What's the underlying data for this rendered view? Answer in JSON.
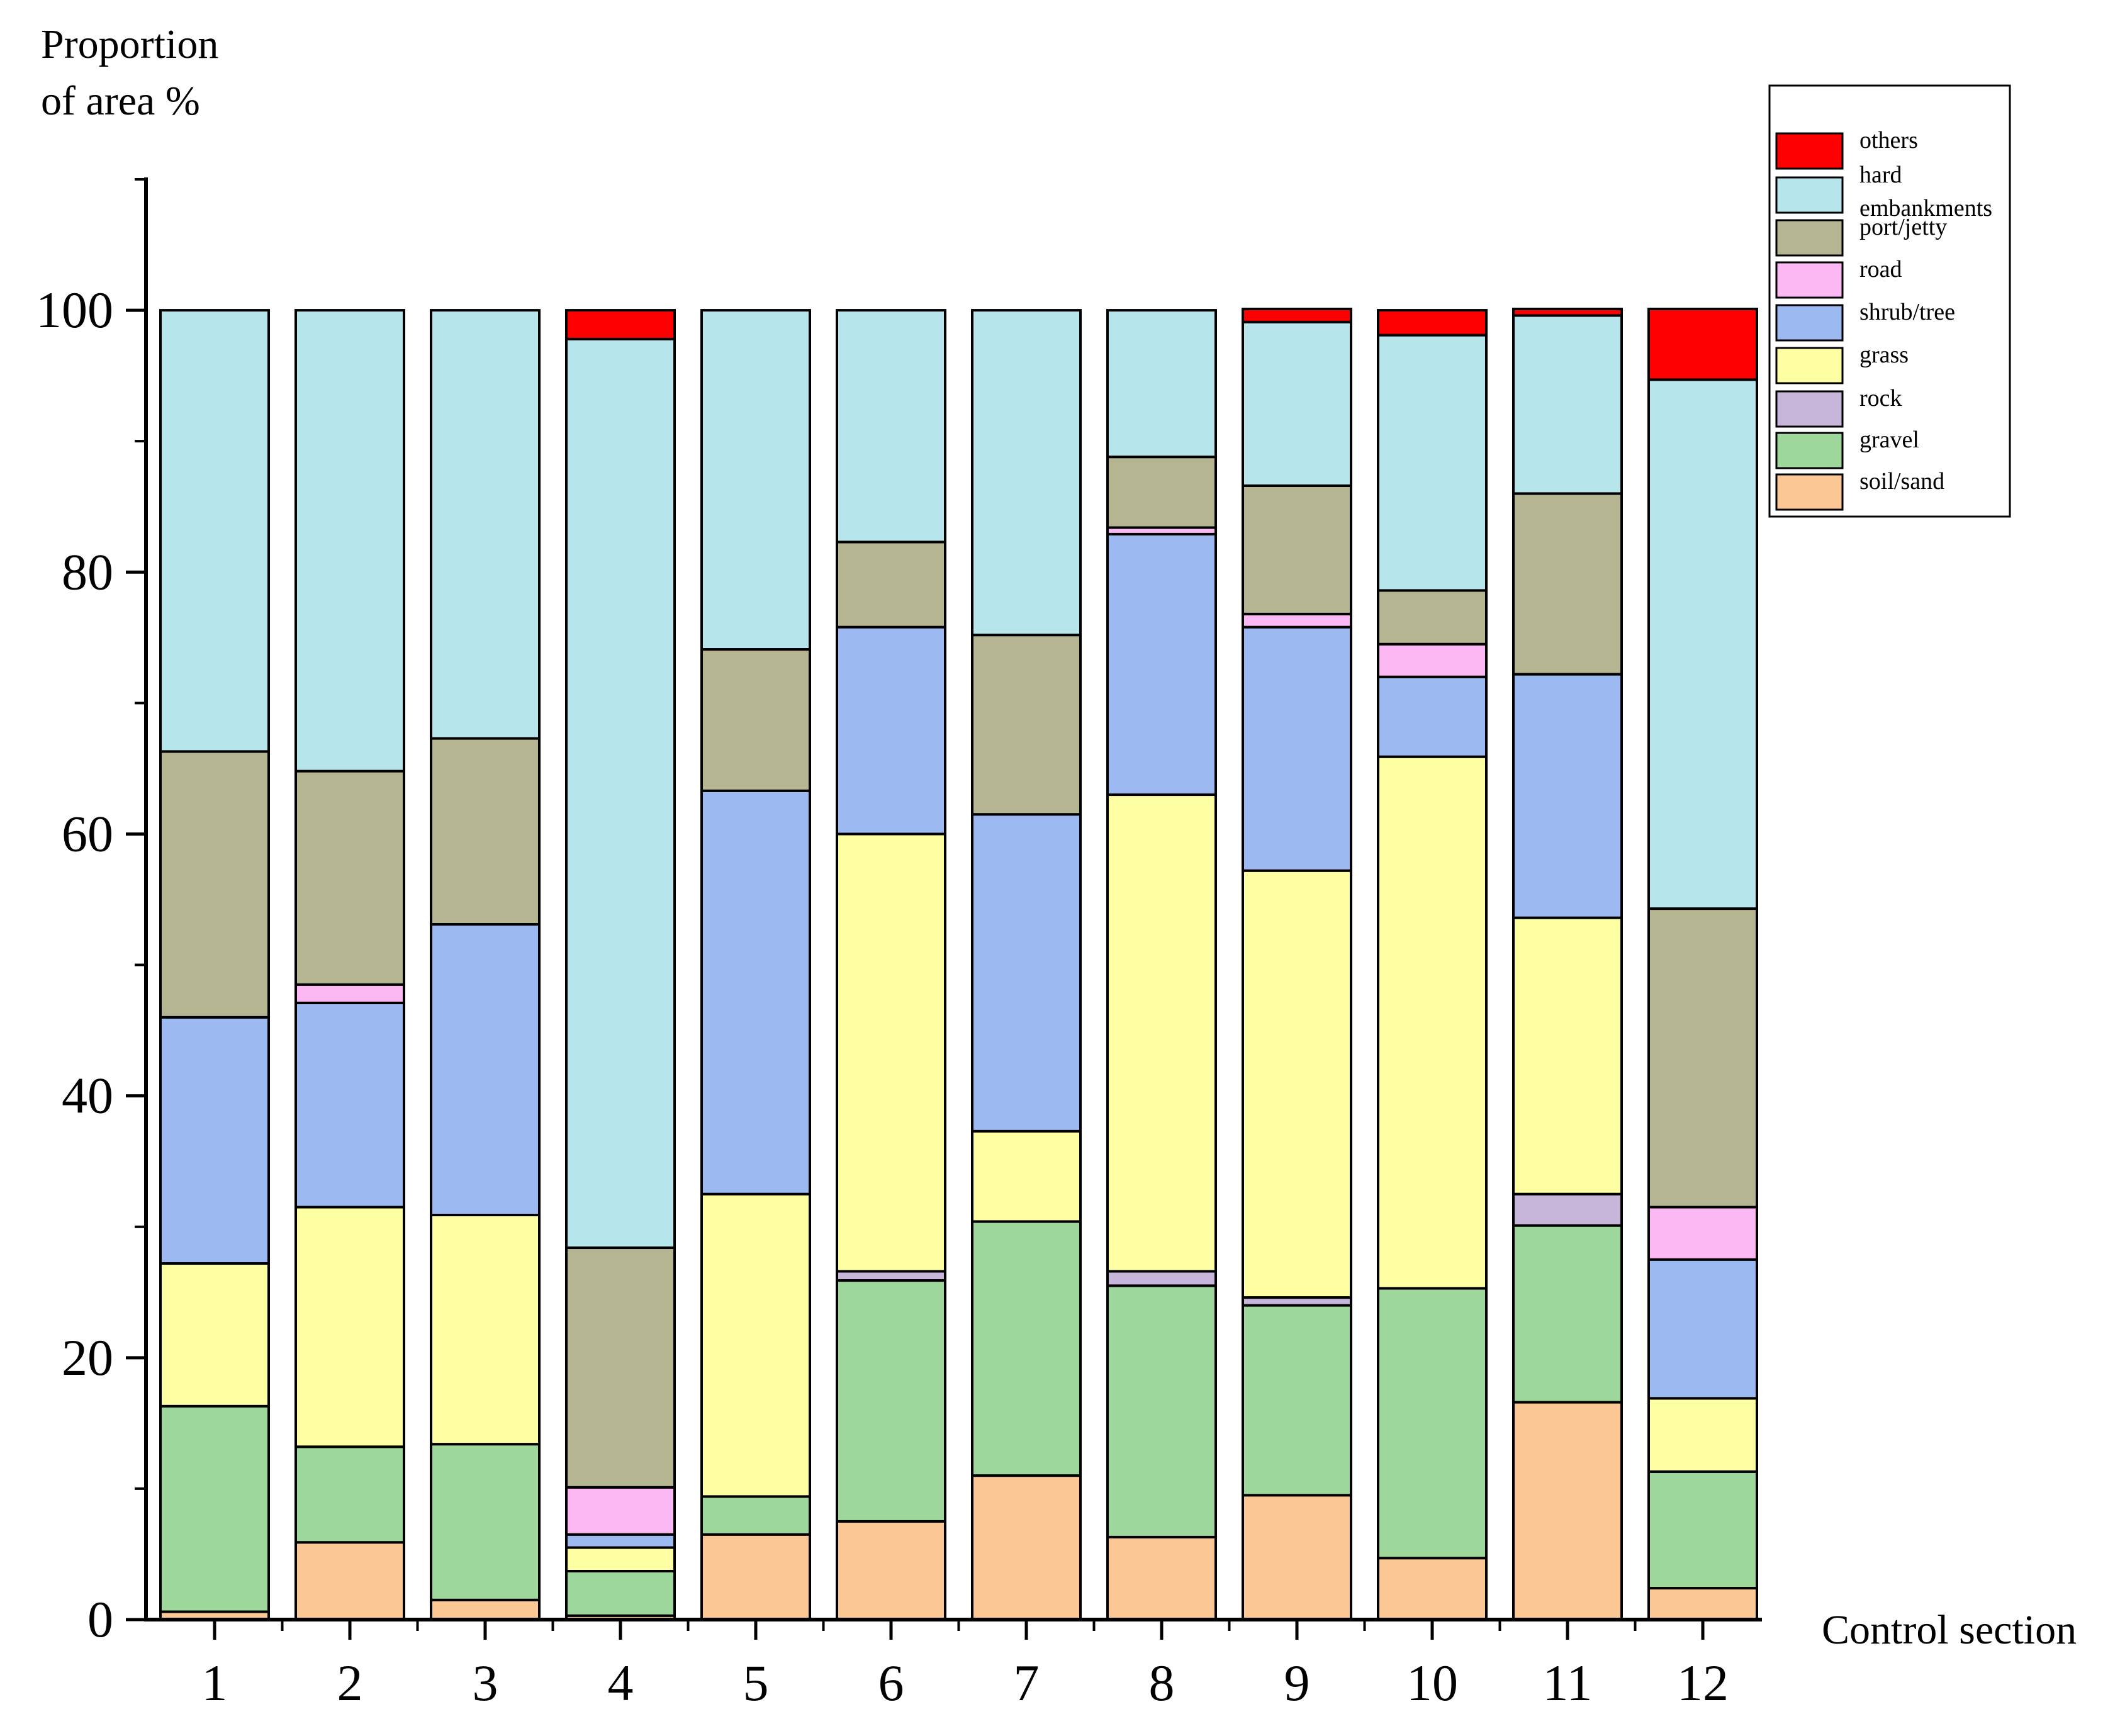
{
  "chart_data": {
    "type": "bar",
    "stacked": true,
    "title": "",
    "ylabel_lines": [
      "Proportion",
      "of area %"
    ],
    "xlabel": "Control section",
    "categories": [
      "1",
      "2",
      "3",
      "4",
      "5",
      "6",
      "7",
      "8",
      "9",
      "10",
      "11",
      "12"
    ],
    "ylim": [
      0,
      110
    ],
    "yticks": [
      0,
      20,
      40,
      60,
      80,
      100
    ],
    "ytick_labels": [
      "0",
      "20",
      "40",
      "60",
      "80",
      "100"
    ],
    "grid": false,
    "legend_position": "top-right",
    "series": [
      {
        "name": "soil/sand",
        "color": "#FAC795",
        "values": [
          0.6,
          5.9,
          1.5,
          0.3,
          6.5,
          7.5,
          11.0,
          6.3,
          9.5,
          4.7,
          16.6,
          2.4
        ]
      },
      {
        "name": "gravel",
        "color": "#9DD79B",
        "values": [
          15.7,
          7.3,
          11.9,
          3.4,
          2.9,
          18.4,
          19.4,
          19.2,
          14.5,
          20.6,
          13.5,
          8.9
        ]
      },
      {
        "name": "rock",
        "color": "#C7B5DA",
        "values": [
          0.0,
          0.0,
          0.0,
          0.0,
          0.0,
          0.7,
          0.0,
          1.1,
          0.6,
          0.0,
          2.4,
          0.0
        ]
      },
      {
        "name": "grass",
        "color": "#FEFEA3",
        "values": [
          10.9,
          18.3,
          17.5,
          1.8,
          23.1,
          33.4,
          6.9,
          36.4,
          32.6,
          40.6,
          21.1,
          5.6
        ]
      },
      {
        "name": "shrub/tree",
        "color": "#9DB9F2",
        "values": [
          18.8,
          15.6,
          22.2,
          1.0,
          30.8,
          15.8,
          24.2,
          19.9,
          18.6,
          6.1,
          18.6,
          10.6
        ]
      },
      {
        "name": "road",
        "color": "#FCB8F3",
        "values": [
          0.0,
          1.4,
          0.0,
          3.6,
          0.0,
          0.0,
          0.0,
          0.5,
          1.0,
          2.5,
          0.0,
          4.0
        ]
      },
      {
        "name": "port/jetty",
        "color": "#B5B592",
        "values": [
          20.3,
          16.3,
          14.2,
          18.3,
          10.8,
          6.5,
          13.7,
          5.4,
          9.8,
          4.1,
          13.8,
          22.8
        ]
      },
      {
        "name": "hard embankments",
        "color": "#B6E5EB",
        "values": [
          33.7,
          35.2,
          32.7,
          69.4,
          25.9,
          17.7,
          24.8,
          11.2,
          12.5,
          19.5,
          13.6,
          40.4
        ]
      },
      {
        "name": "others",
        "color": "#FF0000",
        "values": [
          0.0,
          0.0,
          0.0,
          2.2,
          0.0,
          0.0,
          0.0,
          0.0,
          1.0,
          1.9,
          0.5,
          5.4
        ]
      }
    ],
    "legend_entries": [
      {
        "series": "others",
        "lines": [
          "others"
        ]
      },
      {
        "series": "hard embankments",
        "lines": [
          "hard",
          "embankments"
        ]
      },
      {
        "series": "port/jetty",
        "lines": [
          "port/jetty"
        ]
      },
      {
        "series": "road",
        "lines": [
          "road"
        ]
      },
      {
        "series": "shrub/tree",
        "lines": [
          "shrub/tree"
        ]
      },
      {
        "series": "grass",
        "lines": [
          "grass"
        ]
      },
      {
        "series": "rock",
        "lines": [
          "rock"
        ]
      },
      {
        "series": "gravel",
        "lines": [
          "gravel"
        ]
      },
      {
        "series": "soil/sand",
        "lines": [
          "soil/sand"
        ]
      }
    ]
  }
}
